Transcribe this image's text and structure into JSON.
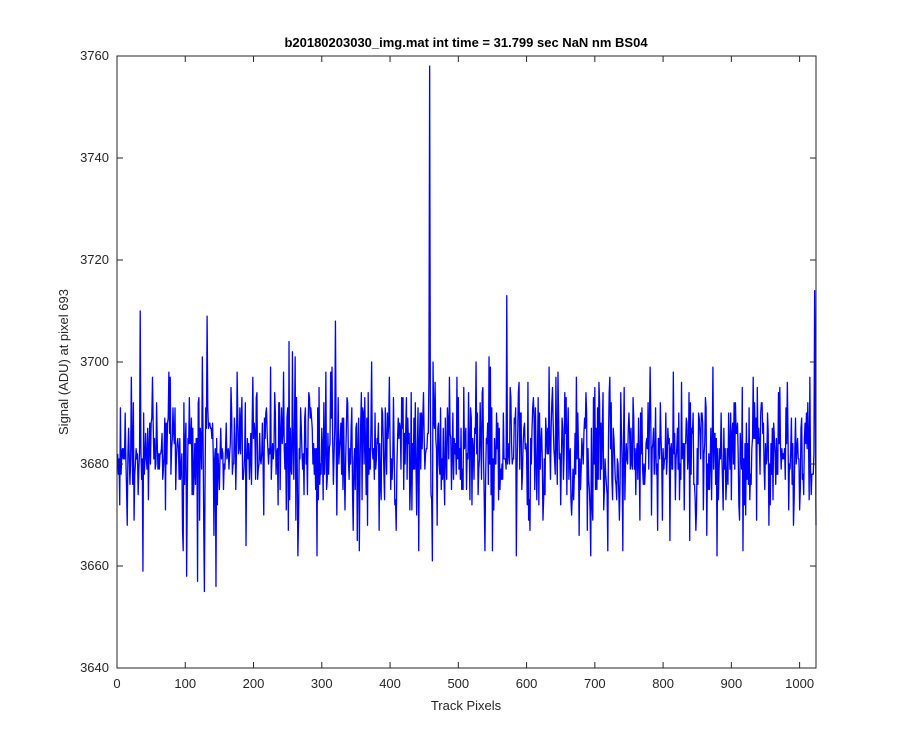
{
  "chart_data": {
    "type": "line",
    "title": "b20180203030_img.mat int time = 31.799 sec  NaN nm BS04",
    "xlabel": "Track Pixels",
    "ylabel": "Signal (ADU) at pixel 693",
    "xlim": [
      0,
      1024
    ],
    "ylim": [
      3640,
      3760
    ],
    "x_ticks": [
      0,
      100,
      200,
      300,
      400,
      500,
      600,
      700,
      800,
      900,
      1000
    ],
    "y_ticks": [
      3640,
      3660,
      3680,
      3700,
      3720,
      3740,
      3760
    ],
    "grid": false,
    "series": [
      {
        "color": "#0000ff",
        "noise_model": {
          "x_start": 1,
          "x_end": 1024,
          "mean": 3683,
          "std": 7.5,
          "seed": 20180203
        },
        "notable_points": [
          {
            "x": 1,
            "y": 3682
          },
          {
            "x": 34,
            "y": 3710
          },
          {
            "x": 38,
            "y": 3659
          },
          {
            "x": 102,
            "y": 3658
          },
          {
            "x": 118,
            "y": 3657
          },
          {
            "x": 128,
            "y": 3655
          },
          {
            "x": 132,
            "y": 3709
          },
          {
            "x": 145,
            "y": 3656
          },
          {
            "x": 265,
            "y": 3662
          },
          {
            "x": 293,
            "y": 3662
          },
          {
            "x": 320,
            "y": 3708
          },
          {
            "x": 458,
            "y": 3758
          },
          {
            "x": 462,
            "y": 3661
          },
          {
            "x": 550,
            "y": 3663
          },
          {
            "x": 571,
            "y": 3713
          },
          {
            "x": 585,
            "y": 3662
          },
          {
            "x": 694,
            "y": 3662
          },
          {
            "x": 879,
            "y": 3662
          },
          {
            "x": 1022,
            "y": 3714
          },
          {
            "x": 1024,
            "y": 3668
          }
        ]
      }
    ]
  }
}
